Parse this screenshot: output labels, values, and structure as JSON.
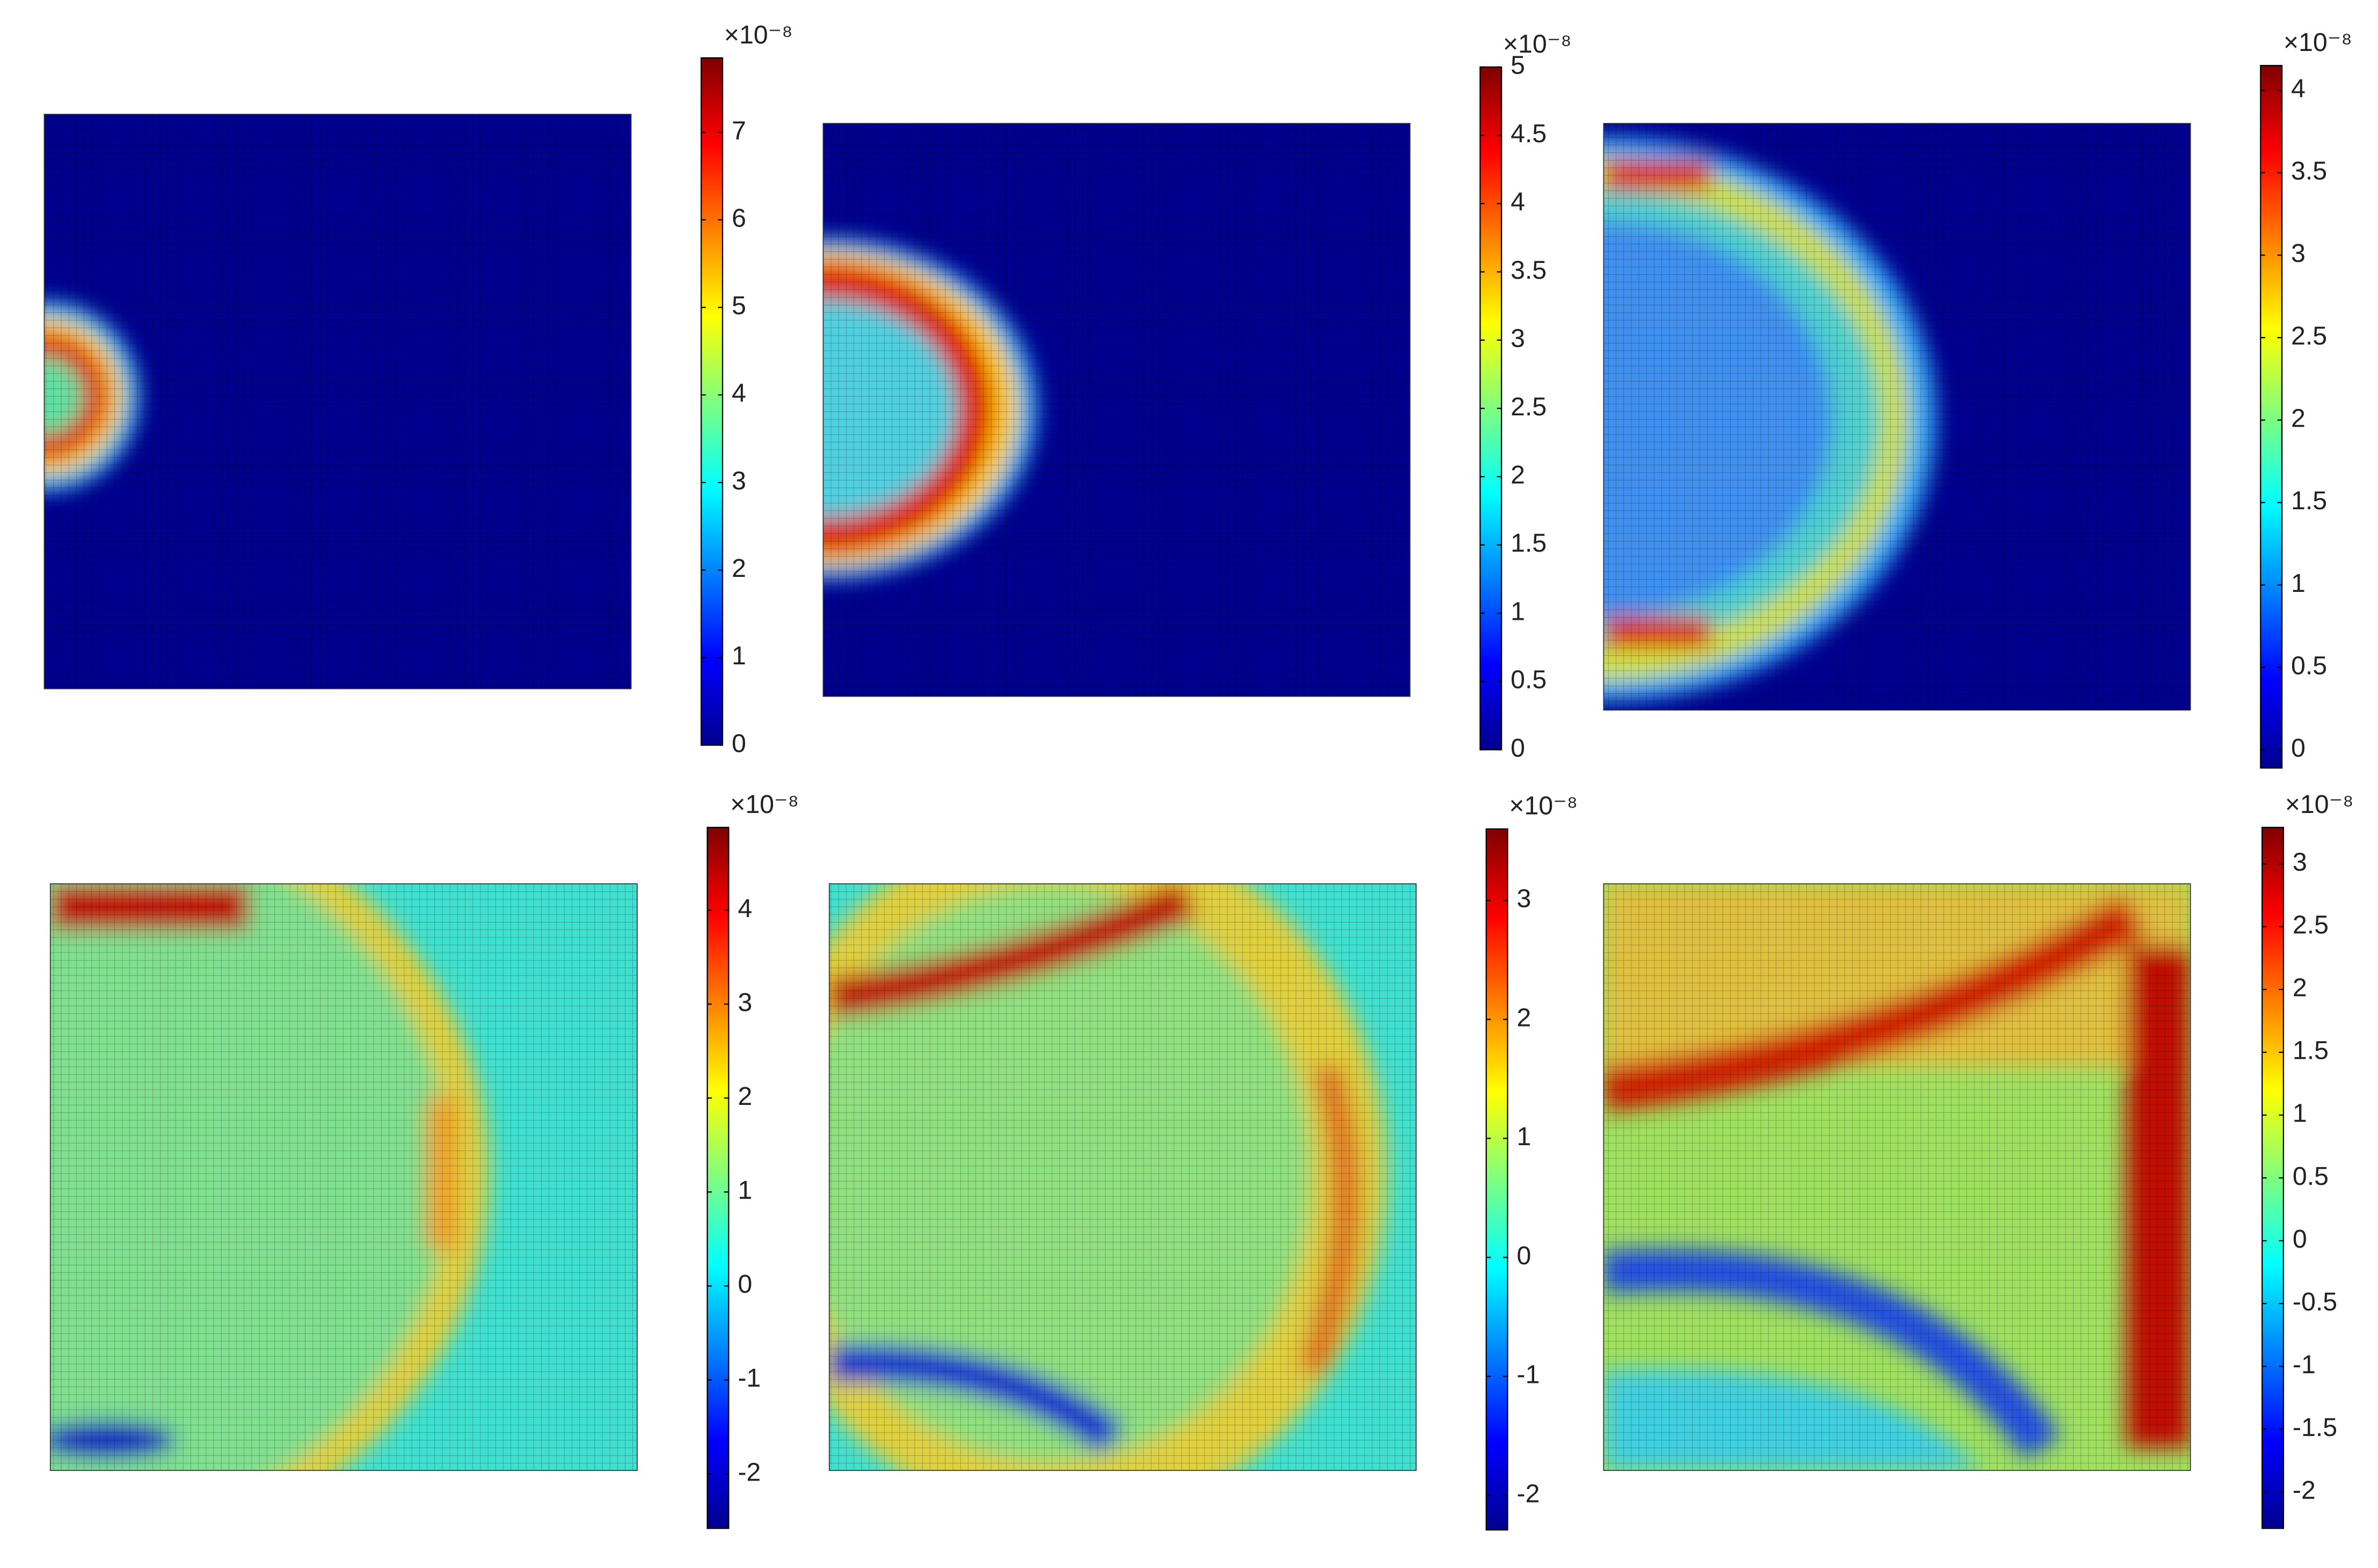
{
  "chart_data": [
    {
      "type": "heatmap",
      "colormap": "jet",
      "colorbar_exponent": "×10⁻⁸",
      "clim": [
        0,
        7.85
      ],
      "cticks": [
        0,
        1,
        2,
        3,
        4,
        5,
        6,
        7
      ]
    },
    {
      "type": "heatmap",
      "colormap": "jet",
      "colorbar_exponent": "×10⁻⁸",
      "clim": [
        0,
        5
      ],
      "cticks": [
        0,
        0.5,
        1,
        1.5,
        2,
        2.5,
        3,
        3.5,
        4,
        4.5,
        5
      ]
    },
    {
      "type": "heatmap",
      "colormap": "jet",
      "colorbar_exponent": "×10⁻⁸",
      "clim": [
        -0.11,
        4.15
      ],
      "cticks": [
        0,
        0.5,
        1,
        1.5,
        2,
        2.5,
        3,
        3.5,
        4
      ]
    },
    {
      "type": "heatmap",
      "colormap": "jet",
      "colorbar_exponent": "×10⁻⁸",
      "clim": [
        -2.58,
        4.88
      ],
      "cticks": [
        -2,
        -1,
        0,
        1,
        2,
        3,
        4
      ]
    },
    {
      "type": "heatmap",
      "colormap": "jet",
      "colorbar_exponent": "×10⁻⁸",
      "clim": [
        -2.29,
        3.6
      ],
      "cticks": [
        -2,
        -1,
        0,
        1,
        2,
        3
      ]
    },
    {
      "type": "heatmap",
      "colormap": "jet",
      "colorbar_exponent": "×10⁻⁸",
      "clim": [
        -2.29,
        3.29
      ],
      "cticks": [
        -2,
        -1.5,
        -1,
        -0.5,
        0,
        0.5,
        1,
        1.5,
        2,
        2.5,
        3
      ]
    }
  ]
}
